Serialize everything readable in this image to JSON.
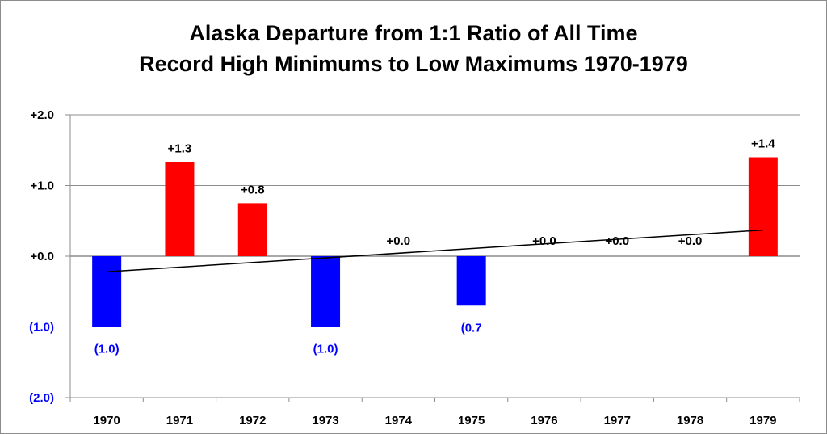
{
  "chart_data": {
    "type": "bar",
    "title_lines": [
      "Alaska Departure from 1:1 Ratio of All Time",
      "Record High Minimums to Low Maximums 1970-1979"
    ],
    "categories": [
      "1970",
      "1971",
      "1972",
      "1973",
      "1974",
      "1975",
      "1976",
      "1977",
      "1978",
      "1979"
    ],
    "values": [
      -1.0,
      1.33,
      0.75,
      -1.0,
      0.0,
      -0.7,
      0.0,
      0.0,
      0.0,
      1.4
    ],
    "data_labels": [
      "(1.0)",
      "+1.3",
      "+0.8",
      "(1.0)",
      "+0.0",
      "(0.7",
      "+0.0",
      "+0.0",
      "+0.0",
      "+1.4"
    ],
    "ylim": [
      -2.0,
      2.0
    ],
    "yticks": [
      {
        "value": 2.0,
        "label": "+2.0"
      },
      {
        "value": 1.0,
        "label": "+1.0"
      },
      {
        "value": 0.0,
        "label": "+0.0"
      },
      {
        "value": -1.0,
        "label": "(1.0)"
      },
      {
        "value": -2.0,
        "label": "(2.0)"
      }
    ],
    "trendline": {
      "start": -0.22,
      "end": 0.37
    },
    "grid": true,
    "legend": "none",
    "colors": {
      "positive": "#ff0000",
      "negative": "#0000ff",
      "positive_label": "#000000",
      "negative_label": "#0000ff",
      "trendline": "#000000",
      "gridline": "#8c8c8c"
    }
  }
}
